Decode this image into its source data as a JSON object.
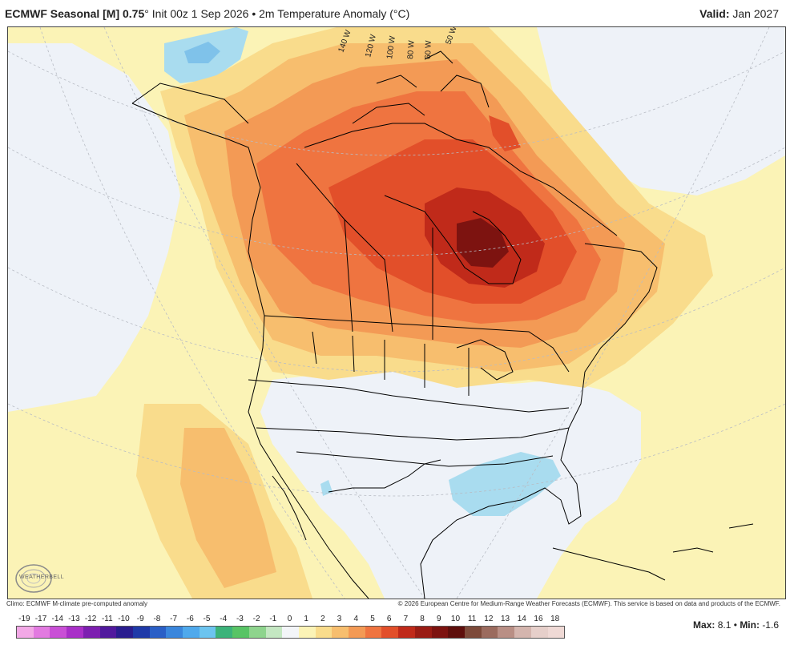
{
  "header": {
    "model": "ECMWF Seasonal [M] 0.75",
    "degree": "°",
    "init": "Init 00z 1 Sep 2026",
    "bullet": "•",
    "field": "2m Temperature Anomaly (°C)",
    "valid_label": "Valid:",
    "valid_value": "Jan 2027"
  },
  "map": {
    "longitude_labels": [
      "140 W",
      "120 W",
      "100 W",
      "80 W",
      "60 W",
      "50 W"
    ],
    "colors": {
      "slight_warm": "#fbf3b6",
      "warm_1": "#f9dc8c",
      "warm_2": "#f7be6e",
      "warm_3": "#f39a55",
      "warm_4": "#ef7440",
      "warm_5": "#e24f2a",
      "warm_6": "#c02a1a",
      "warm_7": "#7d1310",
      "near_zero": "#eef2f8",
      "cool": "#a9dcef",
      "cool_2": "#7fc2ea",
      "coast": "#000000"
    }
  },
  "logo": {
    "text": "WEATHERBELL"
  },
  "footer": {
    "climo": "Climo: ECMWF M-climate pre-computed anomaly",
    "copyright": "© 2026 European Centre for Medium-Range Weather Forecasts (ECMWF). This service is based on data and products of the ECMWF."
  },
  "scale": {
    "labels": [
      "-19",
      "-17",
      "-14",
      "-13",
      "-12",
      "-11",
      "-10",
      "-9",
      "-8",
      "-7",
      "-6",
      "-5",
      "-4",
      "-3",
      "-2",
      "-1",
      "0",
      "1",
      "2",
      "3",
      "4",
      "5",
      "6",
      "7",
      "8",
      "9",
      "10",
      "11",
      "12",
      "13",
      "14",
      "16",
      "18"
    ],
    "colors": [
      "#f2a8e6",
      "#e27ae0",
      "#c94fd6",
      "#a92fc8",
      "#7d1fb0",
      "#51199d",
      "#2a1d8f",
      "#1f3aa8",
      "#2a5fc6",
      "#3a86dc",
      "#4fa9ec",
      "#6cc4ef",
      "#3cb37a",
      "#58c465",
      "#8ed48d",
      "#c4e7c2",
      "#f3f5f8",
      "#fbf3b6",
      "#f9dc8c",
      "#f7be6e",
      "#f39a55",
      "#ef7440",
      "#e24f2a",
      "#c02a1a",
      "#9a1c14",
      "#7d1310",
      "#5e0f0c",
      "#7d4a3a",
      "#9b6b5e",
      "#b98f85",
      "#d4b5ae",
      "#e6cfca",
      "#efd9d5"
    ]
  },
  "stats": {
    "max_label": "Max:",
    "max_value": "8.1",
    "bullet": "•",
    "min_label": "Min:",
    "min_value": "-1.6"
  }
}
